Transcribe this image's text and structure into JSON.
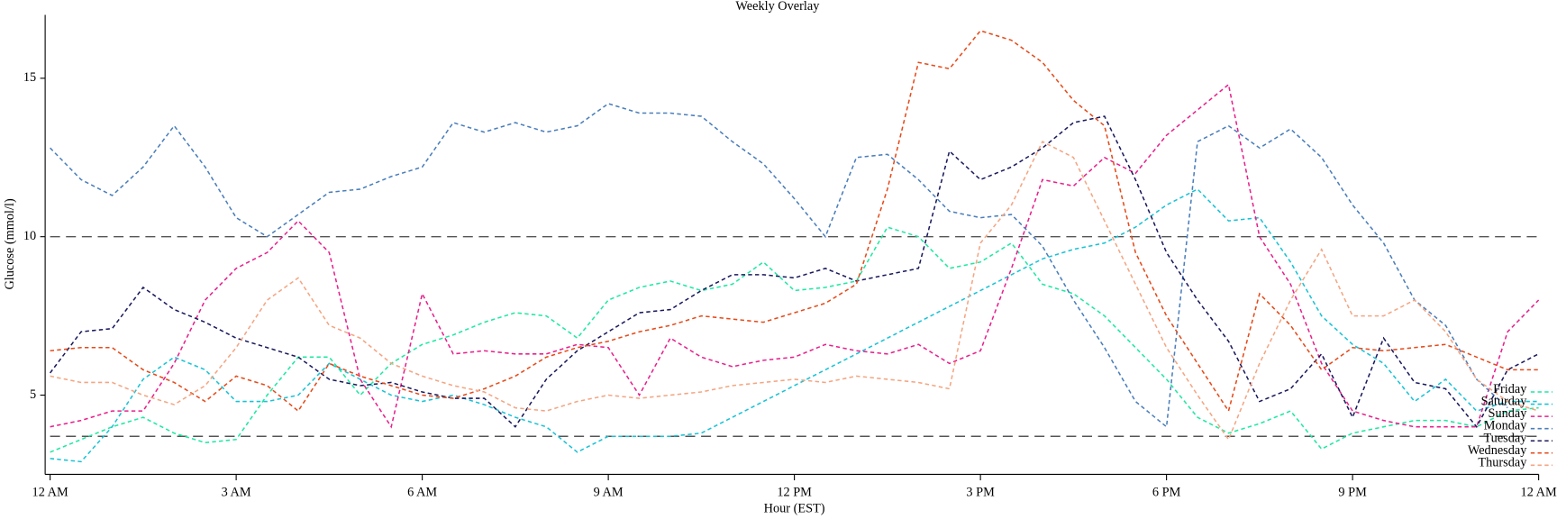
{
  "chart_data": {
    "type": "line",
    "title": "Weekly Overlay",
    "xlabel": "Hour (EST)",
    "ylabel": "Glucose (mmol/l)",
    "x": [
      0,
      0.5,
      1,
      1.5,
      2,
      2.5,
      3,
      3.5,
      4,
      4.5,
      5,
      5.5,
      6,
      6.5,
      7,
      7.5,
      8,
      8.5,
      9,
      9.5,
      10,
      10.5,
      11,
      11.5,
      12,
      12.5,
      13,
      13.5,
      14,
      14.5,
      15,
      15.5,
      16,
      16.5,
      17,
      17.5,
      18,
      18.5,
      19,
      19.5,
      20,
      20.5,
      21,
      21.5,
      22,
      22.5,
      23,
      23.5,
      24
    ],
    "xlim": [
      0,
      24
    ],
    "xticks": [
      {
        "value": 0,
        "label": "12 AM"
      },
      {
        "value": 3,
        "label": "3 AM"
      },
      {
        "value": 6,
        "label": "6 AM"
      },
      {
        "value": 9,
        "label": "9 AM"
      },
      {
        "value": 12,
        "label": "12 PM"
      },
      {
        "value": 15,
        "label": "3 PM"
      },
      {
        "value": 18,
        "label": "6 PM"
      },
      {
        "value": 21,
        "label": "9 PM"
      },
      {
        "value": 24,
        "label": "12 AM"
      }
    ],
    "ylim": [
      2.5,
      17
    ],
    "yticks": [
      5,
      10,
      15
    ],
    "thresholds": [
      10,
      3.7
    ],
    "threshold_color": "#555555",
    "legend": "lower right",
    "series": [
      {
        "name": "Friday",
        "color": "#1de9a0",
        "values": [
          3.2,
          3.6,
          4.0,
          4.3,
          3.8,
          3.5,
          3.6,
          5.0,
          6.2,
          6.2,
          5.0,
          6.0,
          6.6,
          6.9,
          7.3,
          7.6,
          7.5,
          6.8,
          8.0,
          8.4,
          8.6,
          8.3,
          8.5,
          9.2,
          8.3,
          8.4,
          8.6,
          10.3,
          10.0,
          9.0,
          9.2,
          9.8,
          8.5,
          8.2,
          7.5,
          6.5,
          5.5,
          4.3,
          3.8,
          4.1,
          4.5,
          3.3,
          3.8,
          4.0,
          4.2,
          4.2,
          4.0,
          4.5,
          4.6
        ]
      },
      {
        "name": "Saturday",
        "color": "#17c3d6",
        "values": [
          3.0,
          2.9,
          4.0,
          5.5,
          6.2,
          5.8,
          4.8,
          4.8,
          5.0,
          6.0,
          5.5,
          5.0,
          4.8,
          5.0,
          4.7,
          4.3,
          4.0,
          3.2,
          3.7,
          3.7,
          3.7,
          3.8,
          4.3,
          4.8,
          5.3,
          5.8,
          6.3,
          6.8,
          7.3,
          7.8,
          8.3,
          8.8,
          9.3,
          9.6,
          9.8,
          10.3,
          11.0,
          11.5,
          10.5,
          10.6,
          9.2,
          7.5,
          6.6,
          6.0,
          4.8,
          5.5,
          4.5,
          4.8,
          4.8
        ]
      },
      {
        "name": "Sunday",
        "color": "#e8208c",
        "values": [
          4.0,
          4.2,
          4.5,
          4.5,
          6.0,
          8.0,
          9.0,
          9.5,
          10.5,
          9.5,
          5.5,
          4.0,
          8.2,
          6.3,
          6.4,
          6.3,
          6.3,
          6.6,
          6.5,
          5.0,
          6.8,
          6.2,
          5.9,
          6.1,
          6.2,
          6.6,
          6.4,
          6.3,
          6.6,
          6.0,
          6.4,
          9.0,
          11.8,
          11.6,
          12.5,
          12.0,
          13.2,
          14.0,
          14.8,
          10.0,
          8.5,
          6.0,
          4.5,
          4.2,
          4.0,
          4.0,
          4.0,
          7.0,
          8.0
        ]
      },
      {
        "name": "Monday",
        "color": "#4a7ebb",
        "values": [
          12.8,
          11.8,
          11.3,
          12.2,
          13.5,
          12.2,
          10.6,
          10.0,
          10.7,
          11.4,
          11.5,
          11.9,
          12.2,
          13.6,
          13.3,
          13.6,
          13.3,
          13.5,
          14.2,
          13.9,
          13.9,
          13.8,
          13.0,
          12.3,
          11.2,
          10.0,
          12.5,
          12.6,
          11.8,
          10.8,
          10.6,
          10.7,
          9.7,
          8.0,
          6.5,
          4.8,
          4.0,
          13.0,
          13.5,
          12.8,
          13.4,
          12.5,
          11.0,
          9.8,
          8.0,
          7.2,
          5.5,
          4.6,
          null
        ]
      },
      {
        "name": "Tuesday",
        "color": "#1a1a5e",
        "values": [
          5.7,
          7.0,
          7.1,
          8.4,
          7.7,
          7.3,
          6.8,
          6.5,
          6.2,
          5.5,
          5.3,
          5.4,
          5.1,
          4.9,
          4.9,
          4.0,
          5.5,
          6.4,
          7.0,
          7.6,
          7.7,
          8.3,
          8.8,
          8.8,
          8.7,
          9.0,
          8.6,
          8.8,
          9.0,
          12.7,
          11.8,
          12.2,
          12.8,
          13.6,
          13.8,
          11.8,
          9.5,
          8.0,
          6.7,
          4.8,
          5.2,
          6.3,
          4.3,
          6.8,
          5.4,
          5.2,
          4.0,
          5.8,
          6.3
        ]
      },
      {
        "name": "Wednesday",
        "color": "#e64a19",
        "values": [
          6.4,
          6.5,
          6.5,
          5.8,
          5.4,
          4.8,
          5.6,
          5.3,
          4.5,
          6.0,
          5.6,
          5.3,
          5.0,
          4.9,
          5.2,
          5.6,
          6.2,
          6.5,
          6.7,
          7.0,
          7.2,
          7.5,
          7.4,
          7.3,
          7.6,
          7.9,
          8.5,
          11.5,
          15.5,
          15.3,
          16.5,
          16.2,
          15.5,
          14.3,
          13.5,
          9.5,
          7.5,
          6.0,
          4.5,
          8.2,
          7.2,
          5.8,
          6.5,
          6.4,
          6.5,
          6.6,
          6.2,
          5.8,
          5.8
        ]
      },
      {
        "name": "Thursday",
        "color": "#f4a582",
        "values": [
          5.6,
          5.4,
          5.4,
          5.0,
          4.7,
          5.3,
          6.5,
          8.0,
          8.7,
          7.2,
          6.8,
          6.0,
          5.6,
          5.3,
          5.1,
          4.6,
          4.5,
          4.8,
          5.0,
          4.9,
          5.0,
          5.1,
          5.3,
          5.4,
          5.5,
          5.4,
          5.6,
          5.5,
          5.4,
          5.2,
          9.8,
          11.0,
          13.0,
          12.5,
          10.5,
          8.5,
          6.5,
          5.0,
          3.6,
          6.0,
          8.0,
          9.6,
          7.5,
          7.5,
          8.0,
          7.0,
          5.5,
          4.8,
          4.5
        ]
      }
    ]
  }
}
